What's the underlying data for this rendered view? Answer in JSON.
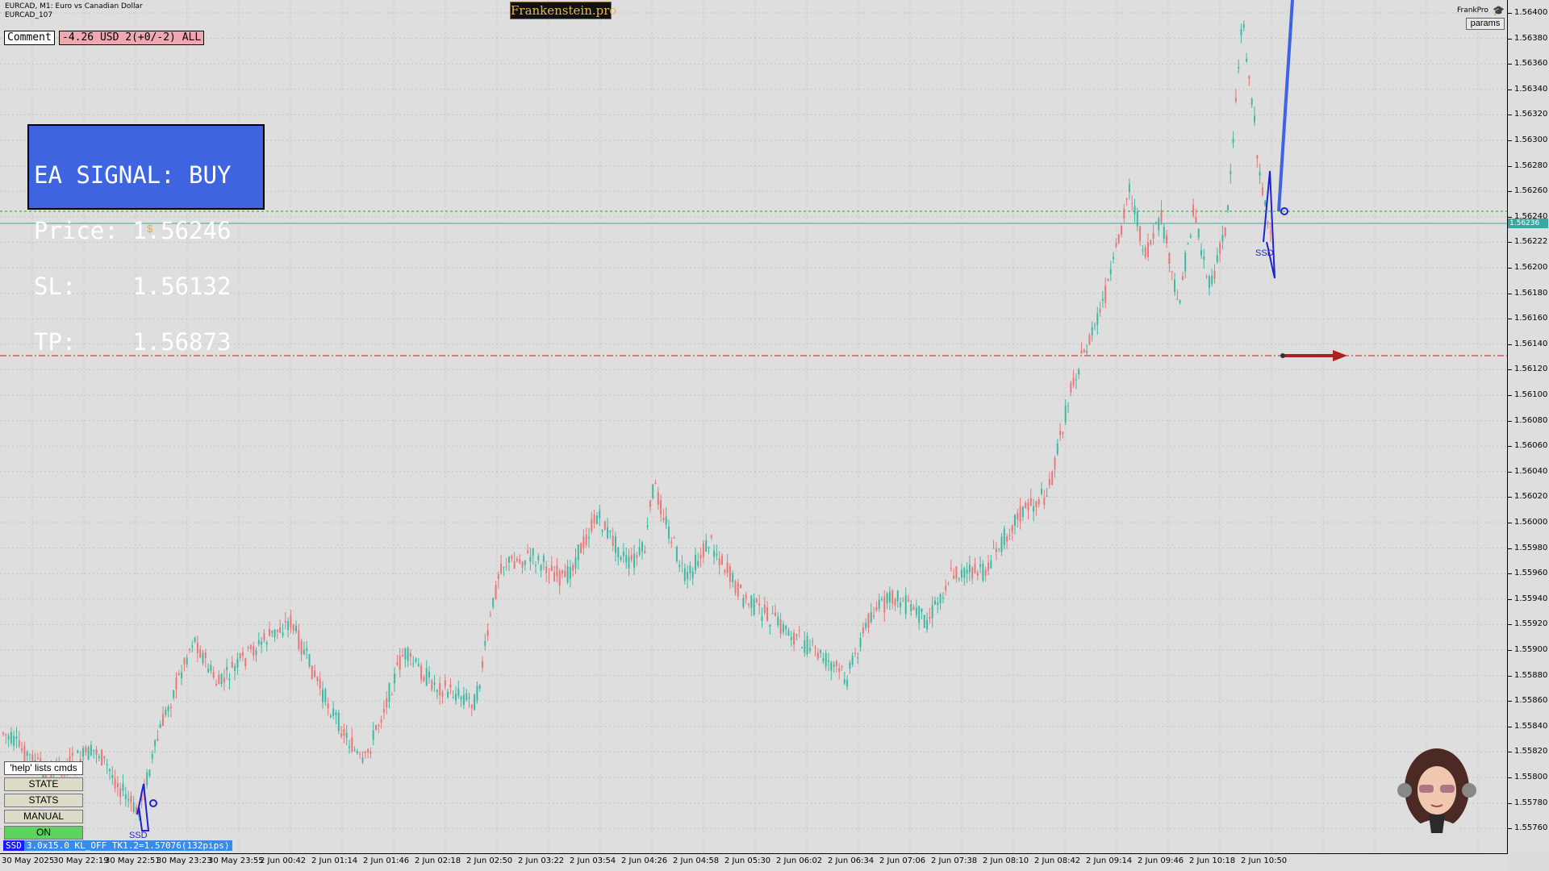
{
  "header": {
    "symbol_line": "EURCAD, M1:  Euro vs Canadian Dollar",
    "sub_line": "EURCAD_107",
    "brand": "Frankenstein.pro",
    "frankpro": "FrankPro",
    "params": "params"
  },
  "comment": {
    "label": "Comment",
    "value": "-4.26 USD 2(+0/-2) ALL"
  },
  "signal": {
    "line1": "EA SIGNAL: BUY",
    "line2": "Price: 1.56246",
    "line3": "SL:    1.56132",
    "line4": "TP:    1.56873"
  },
  "side_buttons": {
    "help": "'help' lists cmds",
    "state": "STATE",
    "stats": "STATS",
    "manual": "MANUAL",
    "on": "ON"
  },
  "status_bar": {
    "tag": "SSD",
    "text": "3.0x15.0 KL_OFF TK1.2=1.57076(132pips)"
  },
  "markers": {
    "ssd_left": "SSD",
    "ssd_right": "SSD",
    "dollar": "$"
  },
  "price_axis": {
    "ticks": [
      "1.56400",
      "1.56380",
      "1.56360",
      "1.56340",
      "1.56320",
      "1.56300",
      "1.56280",
      "1.56260",
      "1.56240",
      "1.56222",
      "1.56200",
      "1.56180",
      "1.56160",
      "1.56140",
      "1.56120",
      "1.56100",
      "1.56080",
      "1.56060",
      "1.56040",
      "1.56020",
      "1.56000",
      "1.55980",
      "1.55960",
      "1.55940",
      "1.55920",
      "1.55900",
      "1.55880",
      "1.55860",
      "1.55840",
      "1.55820",
      "1.55800",
      "1.55780",
      "1.55760"
    ],
    "current_tag": "1.56236"
  },
  "time_axis": {
    "ticks": [
      "30 May 2025",
      "30 May 22:19",
      "30 May 22:51",
      "30 May 23:23",
      "30 May 23:55",
      "2 Jun 00:42",
      "2 Jun 01:14",
      "2 Jun 01:46",
      "2 Jun 02:18",
      "2 Jun 02:50",
      "2 Jun 03:22",
      "2 Jun 03:54",
      "2 Jun 04:26",
      "2 Jun 04:58",
      "2 Jun 05:30",
      "2 Jun 06:02",
      "2 Jun 06:34",
      "2 Jun 07:06",
      "2 Jun 07:38",
      "2 Jun 08:10",
      "2 Jun 08:42",
      "2 Jun 09:14",
      "2 Jun 09:46",
      "2 Jun 10:18",
      "2 Jun 10:50"
    ]
  },
  "colors": {
    "bull": "#3fb8a2",
    "bear": "#e87878",
    "signal_bg": "#3e64e0",
    "sl_line": "#cc2222",
    "tp_line": "#2a9a3a",
    "current_line": "#3aa8a0"
  }
}
